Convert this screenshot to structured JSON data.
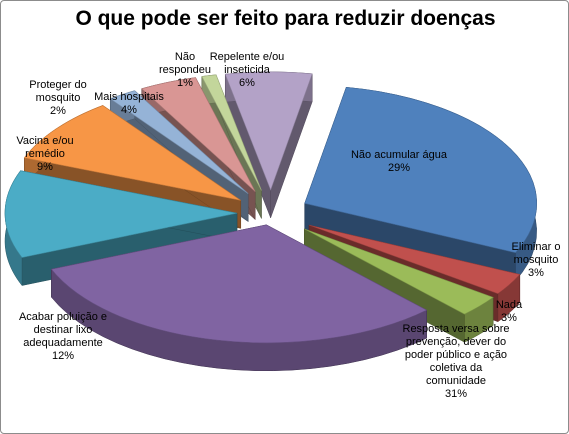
{
  "chart_data": {
    "type": "pie",
    "style": "3d-exploded",
    "title": "O que pode ser feito para reduzir doenças",
    "slices": [
      {
        "label": "Não acumular água",
        "value": 29,
        "value_label": "29%",
        "color": "#4f81bd"
      },
      {
        "label": "Eliminar o mosquito",
        "value": 3,
        "value_label": "3%",
        "color": "#c0504d"
      },
      {
        "label": "Nada",
        "value": 3,
        "value_label": "3%",
        "color": "#9bbb59"
      },
      {
        "label": "Resposta versa sobre prevenção, dever do poder público e ação coletiva da comunidade",
        "value": 31,
        "value_label": "31%",
        "color": "#8064a2"
      },
      {
        "label": "Acabar poluição e destinar lixo adequadamente",
        "value": 12,
        "value_label": "12%",
        "color": "#4bacc6"
      },
      {
        "label": "Vacina e/ou remédio",
        "value": 9,
        "value_label": "9%",
        "color": "#f79646"
      },
      {
        "label": "Proteger do mosquito",
        "value": 2,
        "value_label": "2%",
        "color": "#95b3d7"
      },
      {
        "label": "Mais hospitais",
        "value": 4,
        "value_label": "4%",
        "color": "#d99694"
      },
      {
        "label": "Não respondeu",
        "value": 1,
        "value_label": "1%",
        "color": "#c3d69b"
      },
      {
        "label": "Repelente e/ou inseticida",
        "value": 6,
        "value_label": "6%",
        "color": "#b3a2c7"
      }
    ]
  }
}
